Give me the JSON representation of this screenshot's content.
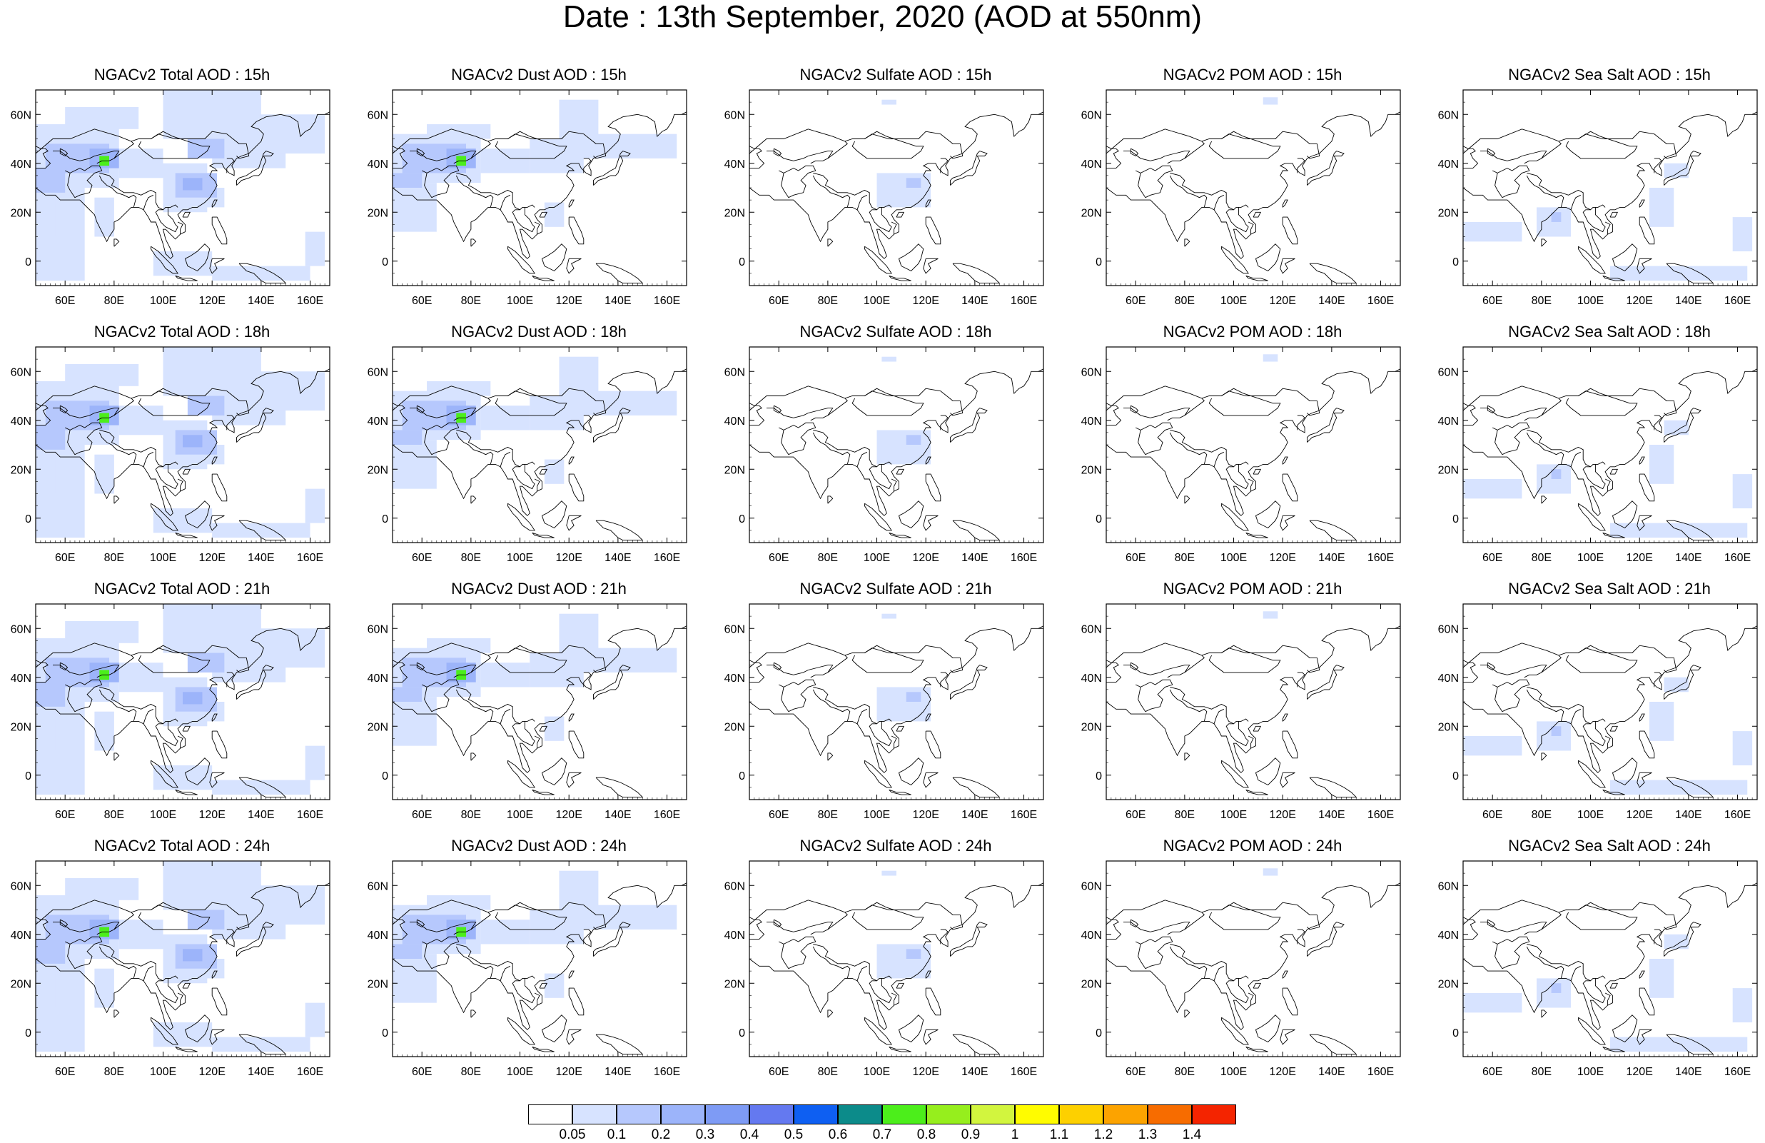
{
  "title": "Date : 13th September, 2020 (AOD at 550nm)",
  "axes": {
    "lon_ticks": [
      "60E",
      "80E",
      "100E",
      "120E",
      "140E",
      "160E"
    ],
    "lat_ticks": [
      "60N",
      "40N",
      "20N",
      "0"
    ],
    "lon_range": [
      48,
      168
    ],
    "lat_range": [
      -10,
      70
    ]
  },
  "panels": [
    [
      {
        "title": "NGACv2 Total AOD : 15h",
        "species": "total",
        "hour": 15
      },
      {
        "title": "NGACv2 Dust AOD : 15h",
        "species": "dust",
        "hour": 15
      },
      {
        "title": "NGACv2 Sulfate AOD : 15h",
        "species": "sulfate",
        "hour": 15
      },
      {
        "title": "NGACv2 POM AOD : 15h",
        "species": "pom",
        "hour": 15
      },
      {
        "title": "NGACv2 Sea Salt AOD : 15h",
        "species": "seasalt",
        "hour": 15
      }
    ],
    [
      {
        "title": "NGACv2 Total AOD : 18h",
        "species": "total",
        "hour": 18
      },
      {
        "title": "NGACv2 Dust AOD : 18h",
        "species": "dust",
        "hour": 18
      },
      {
        "title": "NGACv2 Sulfate AOD : 18h",
        "species": "sulfate",
        "hour": 18
      },
      {
        "title": "NGACv2 POM AOD : 18h",
        "species": "pom",
        "hour": 18
      },
      {
        "title": "NGACv2 Sea Salt AOD : 18h",
        "species": "seasalt",
        "hour": 18
      }
    ],
    [
      {
        "title": "NGACv2 Total AOD : 21h",
        "species": "total",
        "hour": 21
      },
      {
        "title": "NGACv2 Dust AOD : 21h",
        "species": "dust",
        "hour": 21
      },
      {
        "title": "NGACv2 Sulfate AOD : 21h",
        "species": "sulfate",
        "hour": 21
      },
      {
        "title": "NGACv2 POM AOD : 21h",
        "species": "pom",
        "hour": 21
      },
      {
        "title": "NGACv2 Sea Salt AOD : 21h",
        "species": "seasalt",
        "hour": 21
      }
    ],
    [
      {
        "title": "NGACv2 Total AOD : 24h",
        "species": "total",
        "hour": 24
      },
      {
        "title": "NGACv2 Dust AOD : 24h",
        "species": "dust",
        "hour": 24
      },
      {
        "title": "NGACv2 Sulfate AOD : 24h",
        "species": "sulfate",
        "hour": 24
      },
      {
        "title": "NGACv2 POM AOD : 24h",
        "species": "pom",
        "hour": 24
      },
      {
        "title": "NGACv2 Sea Salt  AOD : 24h",
        "species": "seasalt",
        "hour": 24
      }
    ]
  ],
  "colorbar": {
    "labels": [
      "0.05",
      "0.1",
      "0.2",
      "0.3",
      "0.4",
      "0.5",
      "0.6",
      "0.7",
      "0.8",
      "0.9",
      "1",
      "1.1",
      "1.2",
      "1.3",
      "1.4"
    ],
    "colors": [
      "#ffffff",
      "#d7e3ff",
      "#b6c8fd",
      "#9cb4fa",
      "#7e9bf5",
      "#6479f0",
      "#0e5ff2",
      "#0c8b8a",
      "#4cee1b",
      "#96ee1d",
      "#d2f53e",
      "#fffc00",
      "#fdd000",
      "#fca300",
      "#f76c00",
      "#f42400"
    ]
  },
  "plume_levels": [
    {
      "level": "0.1",
      "color": "#d7e3ff"
    },
    {
      "level": "0.2",
      "color": "#b6c8fd"
    },
    {
      "level": "0.3",
      "color": "#9cb4fa"
    },
    {
      "level": "0.8",
      "color": "#4cee1b"
    }
  ]
}
